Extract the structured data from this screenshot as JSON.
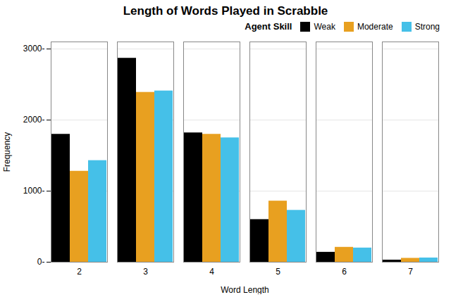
{
  "chart_data": {
    "type": "bar",
    "title": "Length of Words Played in Scrabble",
    "xlabel": "Word Length",
    "ylabel": "Frequency",
    "categories": [
      "2",
      "3",
      "4",
      "5",
      "6",
      "7"
    ],
    "series": [
      {
        "name": "Weak",
        "color": "#000000",
        "values": [
          1800,
          2870,
          1820,
          600,
          140,
          30
        ]
      },
      {
        "name": "Moderate",
        "color": "#E8A020",
        "values": [
          1280,
          2390,
          1800,
          860,
          210,
          55
        ]
      },
      {
        "name": "Strong",
        "color": "#45C0E8",
        "values": [
          1430,
          2410,
          1750,
          730,
          200,
          60
        ]
      }
    ],
    "legend_title": "Agent Skill",
    "legend": "upper right",
    "ylim": [
      0,
      3100
    ],
    "yticks": [
      {
        "value": 0,
        "label": "0-"
      },
      {
        "value": 1000,
        "label": "1000-"
      },
      {
        "value": 2000,
        "label": "2000-"
      },
      {
        "value": 3000,
        "label": "3000-"
      }
    ],
    "grid": true
  }
}
